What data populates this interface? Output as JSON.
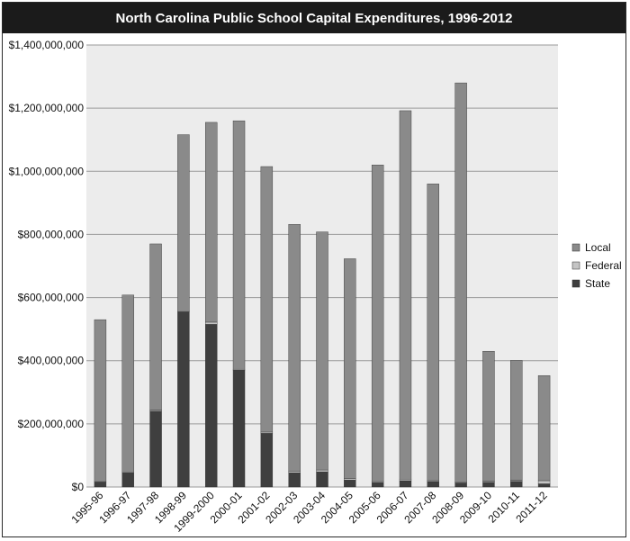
{
  "chart_data": {
    "type": "bar",
    "stacked": true,
    "title": "North Carolina Public School Capital Expenditures, 1996-2012",
    "xlabel": "",
    "ylabel": "",
    "ylim": [
      0,
      1400000000
    ],
    "y_ticks": [
      0,
      200000000,
      400000000,
      600000000,
      800000000,
      1000000000,
      1200000000,
      1400000000
    ],
    "y_tick_labels": [
      "$0",
      "$200,000,000",
      "$400,000,000",
      "$600,000,000",
      "$800,000,000",
      "$1,000,000,000",
      "$1,200,000,000",
      "$1,400,000,000"
    ],
    "grid": true,
    "legend_position": "right",
    "categories": [
      "1995-96",
      "1996-97",
      "1997-98",
      "1998-99",
      "1999-2000",
      "2000-01",
      "2001-02",
      "2002-03",
      "2003-04",
      "2004-05",
      "2005-06",
      "2006-07",
      "2007-08",
      "2008-09",
      "2009-10",
      "2010-11",
      "2011-12"
    ],
    "series": [
      {
        "name": "State",
        "color": "#3f3f3f",
        "values": [
          15000000,
          45000000,
          240000000,
          555000000,
          515000000,
          370000000,
          170000000,
          45000000,
          48000000,
          22000000,
          15000000,
          20000000,
          17000000,
          13000000,
          15000000,
          18000000,
          10000000
        ]
      },
      {
        "name": "Federal",
        "color": "#c4c4c4",
        "values": [
          2000000,
          3000000,
          3000000,
          3000000,
          7000000,
          3000000,
          4000000,
          5000000,
          6000000,
          5000000,
          4000000,
          5000000,
          3000000,
          3000000,
          3000000,
          3000000,
          10000000
        ]
      },
      {
        "name": "Local",
        "color": "#8a8a8a",
        "values": [
          513000000,
          560000000,
          527000000,
          558000000,
          633000000,
          787000000,
          841000000,
          782000000,
          754000000,
          696000000,
          1001000000,
          1167000000,
          940000000,
          1264000000,
          412000000,
          380000000,
          333000000
        ]
      }
    ],
    "legend_order": [
      "Local",
      "Federal",
      "State"
    ]
  },
  "colors": {
    "plot_background": "#ececec",
    "title_bar": "#1b1b1b",
    "gridline": "#9a9a9a"
  }
}
